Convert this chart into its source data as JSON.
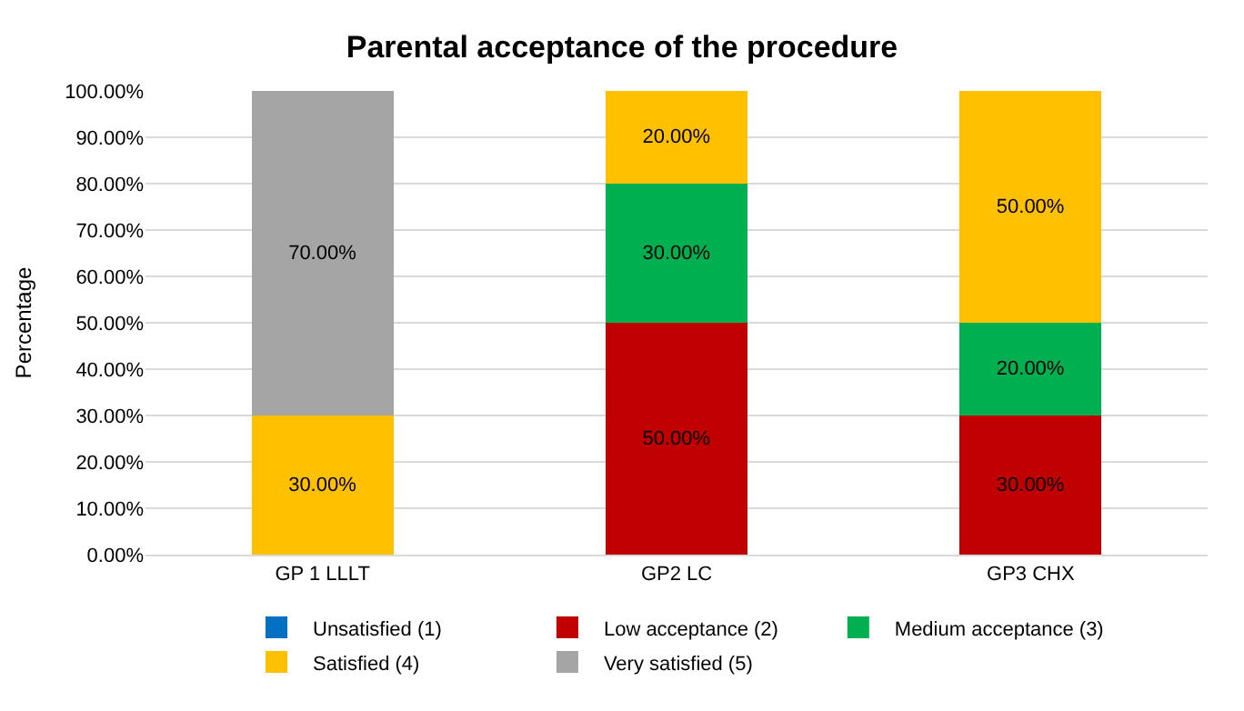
{
  "chart_data": {
    "type": "bar",
    "title": "Parental acceptance of the procedure",
    "ylabel": "Percentage",
    "stacked": true,
    "categories": [
      "GP 1 LLLT",
      "GP2 LC",
      "GP3 CHX"
    ],
    "series": [
      {
        "name": "Unsatisfied (1)",
        "color": "#0070c0",
        "values": [
          null,
          null,
          null
        ],
        "value_labels": [
          null,
          null,
          null
        ]
      },
      {
        "name": "Low acceptance (2)",
        "color": "#c00000",
        "values": [
          null,
          50,
          30
        ],
        "value_labels": [
          null,
          "50.00%",
          "30.00%"
        ]
      },
      {
        "name": "Medium acceptance (3)",
        "color": "#00b050",
        "values": [
          null,
          30,
          20
        ],
        "value_labels": [
          null,
          "30.00%",
          "20.00%"
        ]
      },
      {
        "name": "Satisfied (4)",
        "color": "#ffc000",
        "values": [
          30,
          20,
          50
        ],
        "value_labels": [
          "30.00%",
          "20.00%",
          "50.00%"
        ]
      },
      {
        "name": "Very satisfied (5)",
        "color": "#a5a5a5",
        "values": [
          70,
          null,
          null
        ],
        "value_labels": [
          "70.00%",
          null,
          null
        ]
      }
    ],
    "ylim": [
      0,
      100
    ],
    "yticks": [
      {
        "value": 0,
        "label": "0.00%"
      },
      {
        "value": 10,
        "label": "10.00%"
      },
      {
        "value": 20,
        "label": "20.00%"
      },
      {
        "value": 30,
        "label": "30.00%"
      },
      {
        "value": 40,
        "label": "40.00%"
      },
      {
        "value": 50,
        "label": "50.00%"
      },
      {
        "value": 60,
        "label": "60.00%"
      },
      {
        "value": 70,
        "label": "70.00%"
      },
      {
        "value": 80,
        "label": "80.00%"
      },
      {
        "value": 90,
        "label": "90.00%"
      },
      {
        "value": 100,
        "label": "100.00%"
      }
    ],
    "grid": "y",
    "legend": "bottom"
  }
}
